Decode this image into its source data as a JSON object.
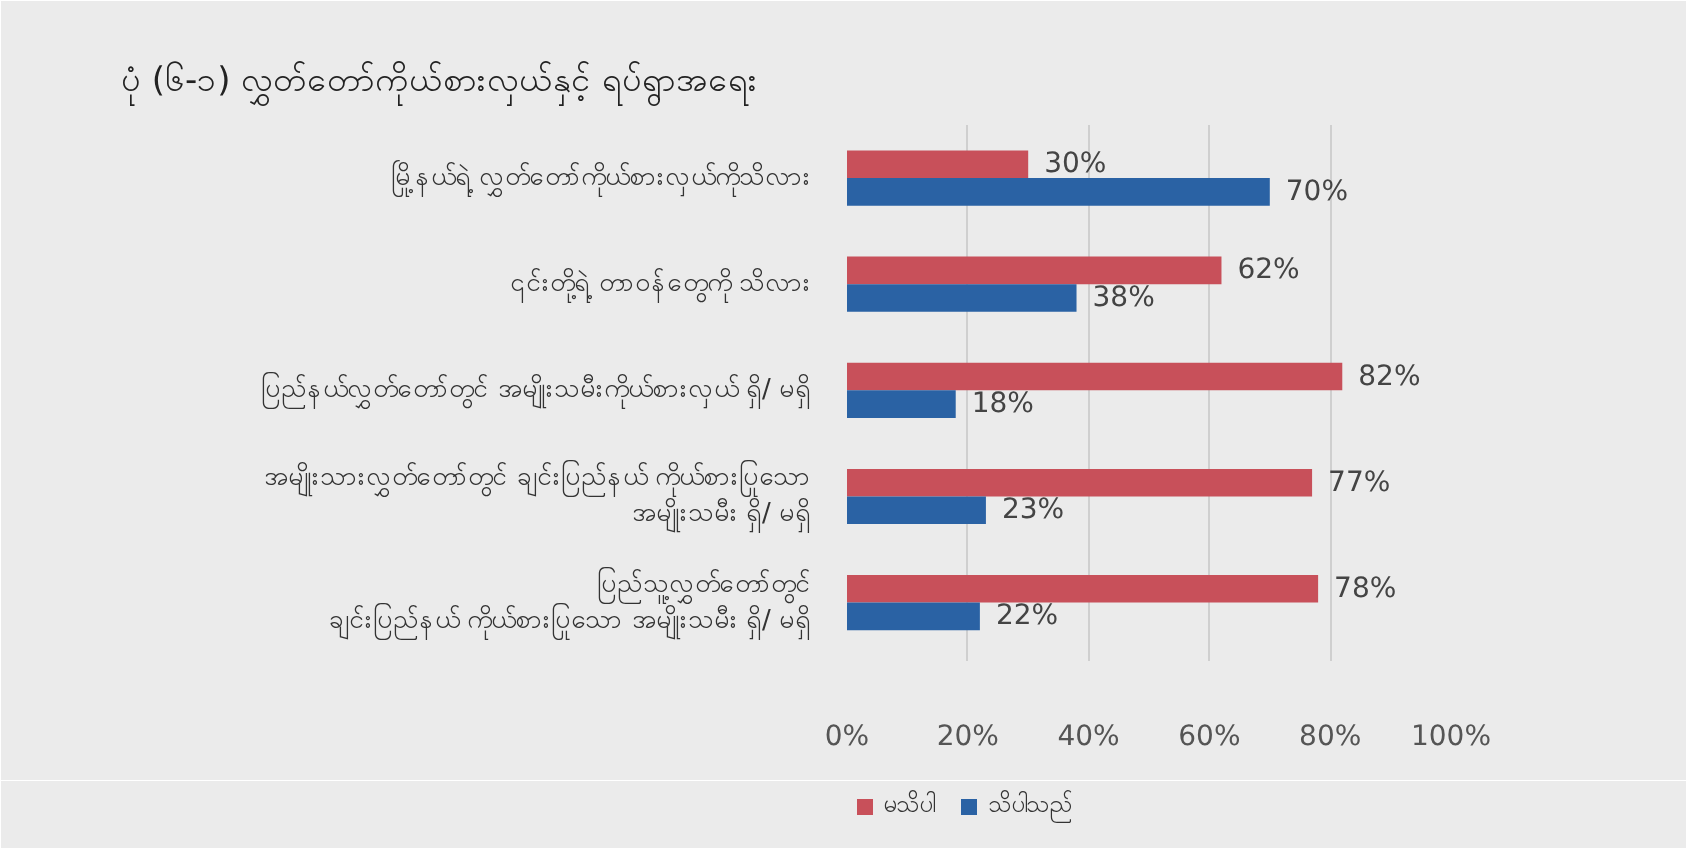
{
  "chart_data": {
    "type": "bar",
    "orientation": "horizontal",
    "title": "ပုံ (၆-၁) လွှတ်တော်ကိုယ်စားလှယ်နှင့် ရပ်ရွာအရေး",
    "categories": [
      "မြို့နယ်ရဲ့ လွှတ်တော်ကိုယ်စားလှယ်ကိုသိလား",
      "၎င်းတို့ရဲ့ တာဝန်တွေကို သိလား",
      "ပြည်နယ်လွှတ်တော်တွင် အမျိုးသမီးကိုယ်စားလှယ် ရှိ/ မရှိ",
      "အမျိုးသားလွှတ်တော်တွင် ချင်းပြည်နယ် ကိုယ်စားပြုသော\nအမျိုးသမီး ရှိ/ မရှိ",
      "ပြည်သူ့လွှတ်တော်တွင်\nချင်းပြည်နယ် ကိုယ်စားပြုသော အမျိုးသမီး ရှိ/ မရှိ"
    ],
    "series": [
      {
        "name": "မသိပါ",
        "color": "#c8505a",
        "values": [
          30,
          62,
          82,
          77,
          78
        ],
        "value_labels": [
          "30%",
          "62%",
          "82%",
          "77%",
          "78%"
        ]
      },
      {
        "name": "သိပါသည်",
        "color": "#2a62a4",
        "values": [
          70,
          38,
          18,
          23,
          22
        ],
        "value_labels": [
          "70%",
          "38%",
          "18%",
          "23%",
          "22%"
        ]
      }
    ],
    "xlim": [
      0,
      100
    ],
    "xticks": [
      {
        "value": 0,
        "label": "0%"
      },
      {
        "value": 20,
        "label": "20%"
      },
      {
        "value": 40,
        "label": "40%"
      },
      {
        "value": 60,
        "label": "60%"
      },
      {
        "value": 80,
        "label": "80%"
      },
      {
        "value": 100,
        "label": "100%"
      }
    ],
    "grid": "x",
    "legend": "bottom"
  }
}
